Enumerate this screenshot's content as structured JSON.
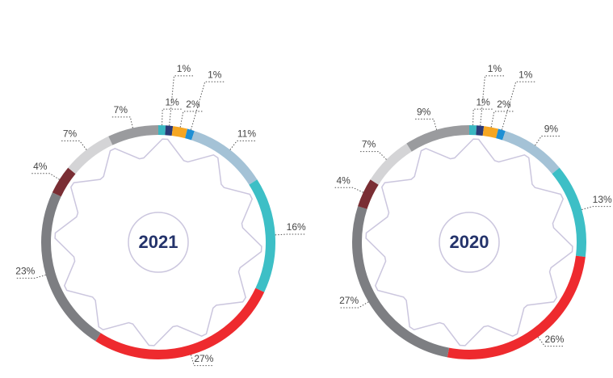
{
  "chart_data": [
    {
      "type": "donut",
      "title": "2021",
      "values": [
        1,
        1,
        2,
        1,
        11,
        16,
        27,
        23,
        4,
        7,
        7
      ],
      "value_labels": [
        "1%",
        "1%",
        "2%",
        "1%",
        "11%",
        "16%",
        "27%",
        "23%",
        "4%",
        "7%",
        "7%"
      ],
      "colors": [
        "#3ab7c2",
        "#2b3a78",
        "#f5a623",
        "#1e8fd4",
        "#a4c2d6",
        "#3dbfc6",
        "#ee2a2e",
        "#7d7e82",
        "#7a2e34",
        "#d4d4d6",
        "#9a9b9e"
      ]
    },
    {
      "type": "donut",
      "title": "2020",
      "values": [
        1,
        1,
        2,
        1,
        9,
        13,
        26,
        27,
        4,
        7,
        9
      ],
      "value_labels": [
        "1%",
        "1%",
        "2%",
        "1%",
        "9%",
        "13%",
        "26%",
        "27%",
        "4%",
        "7%",
        "9%"
      ],
      "colors": [
        "#3ab7c2",
        "#2b3a78",
        "#f5a623",
        "#1e8fd4",
        "#a4c2d6",
        "#3dbfc6",
        "#ee2a2e",
        "#7d7e82",
        "#7a2e34",
        "#d4d4d6",
        "#9a9b9e"
      ]
    }
  ]
}
